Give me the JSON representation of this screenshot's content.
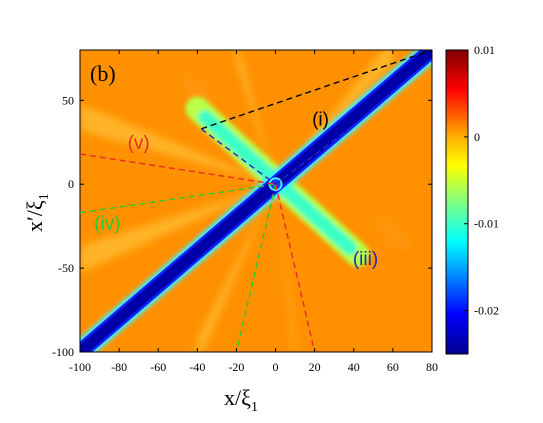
{
  "chart_data": {
    "type": "heatmap",
    "panel_label": "(b)",
    "xlabel": {
      "main": "x/",
      "sym": "ξ",
      "sub": "1"
    },
    "ylabel": {
      "main": "x′/",
      "sym": "ξ",
      "sub": "1"
    },
    "xlim": [
      -100,
      80
    ],
    "ylim": [
      -100,
      80
    ],
    "x_ticks": [
      -100,
      -80,
      -60,
      -40,
      -20,
      0,
      20,
      40,
      60,
      80
    ],
    "y_ticks": [
      -100,
      -50,
      0,
      50
    ],
    "colorbar": {
      "range": [
        -0.025,
        0.01
      ],
      "ticks": [
        0.01,
        0,
        -0.01,
        -0.02
      ],
      "tick_labels": [
        "0.01",
        "0",
        "-0.01",
        "-0.02"
      ],
      "colormap": "jet"
    },
    "background_value": 0.001,
    "diagonal_band_value": -0.024,
    "anti_diagonal_value": -0.01,
    "lines": [
      {
        "name": "(i)",
        "color": "#000000",
        "from": [
          -38,
          33
        ],
        "to": [
          80,
          80
        ],
        "dashed": true
      },
      {
        "name": "(iii)",
        "color": "#1c2bc4",
        "from": [
          0,
          0
        ],
        "to": [
          40,
          35
        ],
        "dashed": true,
        "reversed_anti": true
      },
      {
        "name": "(iv)",
        "color": "#2ec832",
        "from": [
          -100,
          -17
        ],
        "to": [
          0,
          0
        ],
        "dashed": true
      },
      {
        "name": "(v)",
        "color": "#ee2a2a",
        "from": [
          -100,
          18
        ],
        "to": [
          0,
          0
        ],
        "dashed": true
      }
    ],
    "extra_lines": [
      {
        "color": "#2ec832",
        "from": [
          0,
          0
        ],
        "to": [
          -20,
          -100
        ]
      },
      {
        "color": "#ee2a2a",
        "from": [
          0,
          0
        ],
        "to": [
          20,
          -100
        ]
      }
    ],
    "line_labels": [
      {
        "text": "(i)",
        "color": "#000000",
        "at": [
          23,
          35
        ]
      },
      {
        "text": "(iii)",
        "color": "#1c2bc4",
        "at": [
          46,
          -48
        ]
      },
      {
        "text": "(iv)",
        "color": "#2ec832",
        "at": [
          -86,
          -27
        ]
      },
      {
        "text": "(v)",
        "color": "#ee2a2a",
        "at": [
          -70,
          21
        ]
      }
    ]
  }
}
